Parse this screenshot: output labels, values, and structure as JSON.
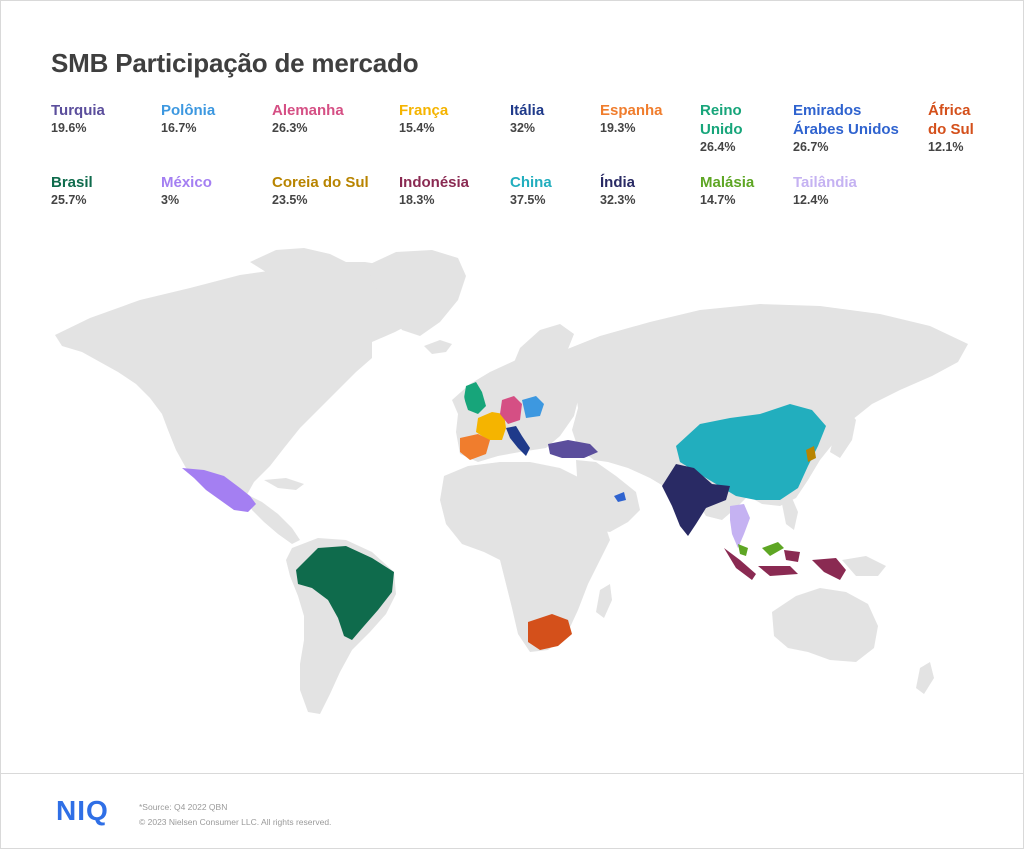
{
  "title": "SMB Participação de mercado",
  "legend": [
    {
      "name": "Turquia",
      "value": "19.6%",
      "color": "#5b4e9c"
    },
    {
      "name": "Polônia",
      "value": "16.7%",
      "color": "#3d98e0"
    },
    {
      "name": "Alemanha",
      "value": "26.3%",
      "color": "#d54f84"
    },
    {
      "name": "França",
      "value": "15.4%",
      "color": "#f5b400"
    },
    {
      "name": "Itália",
      "value": "32%",
      "color": "#1f3a8a"
    },
    {
      "name": "Espanha",
      "value": "19.3%",
      "color": "#f07d2d"
    },
    {
      "name": "Reino\nUnido",
      "value": "26.4%",
      "color": "#17a57a"
    },
    {
      "name": "Emirados\nÁrabes Unidos",
      "value": "26.7%",
      "color": "#2f63cf"
    },
    {
      "name": "África\ndo Sul",
      "value": "12.1%",
      "color": "#d4501b"
    },
    {
      "name": "Brasil",
      "value": "25.7%",
      "color": "#0f6b4c"
    },
    {
      "name": "México",
      "value": "3%",
      "color": "#a47ff2"
    },
    {
      "name": "Coreia do Sul",
      "value": "23.5%",
      "color": "#b88400"
    },
    {
      "name": "Indonésia",
      "value": "18.3%",
      "color": "#8a2a52"
    },
    {
      "name": "China",
      "value": "37.5%",
      "color": "#22aebe"
    },
    {
      "name": "Índia",
      "value": "32.3%",
      "color": "#292a64"
    },
    {
      "name": "Malásia",
      "value": "14.7%",
      "color": "#5ea624"
    },
    {
      "name": "Tailândia",
      "value": "12.4%",
      "color": "#c5b2f2"
    }
  ],
  "footer": {
    "logo": "NIQ",
    "source": "*Source: Q4 2022 QBN",
    "copyright": "© 2023 Nielsen Consumer LLC. All rights reserved."
  },
  "colors": {
    "land": "#e3e3e3",
    "title": "#3f3f3f",
    "brand": "#2f6fe6"
  }
}
